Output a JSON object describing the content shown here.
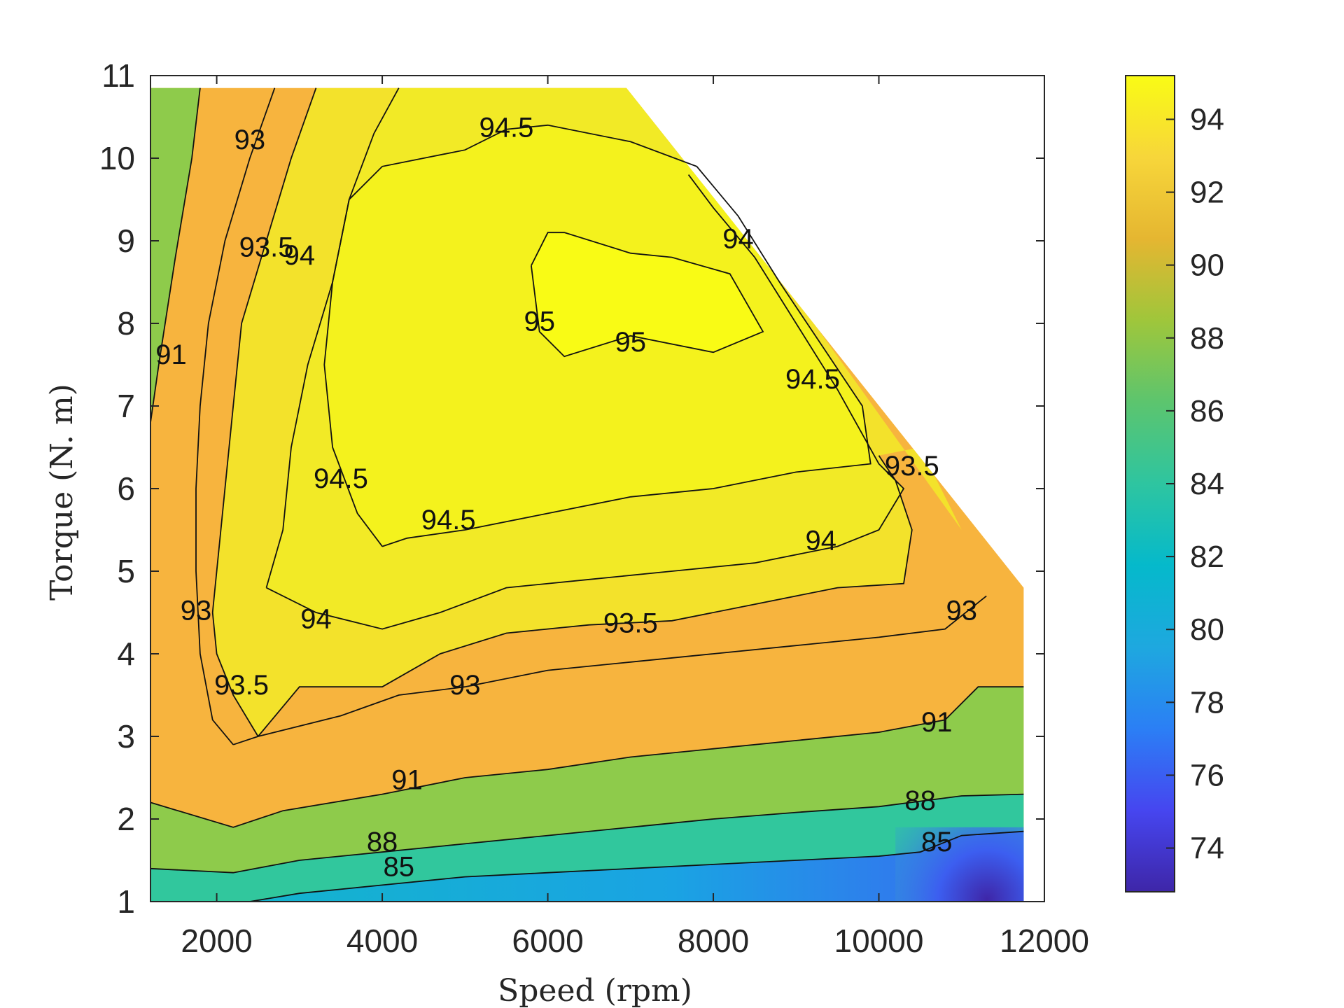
{
  "chart_data": {
    "type": "contourf",
    "xlabel": "Speed (rpm)",
    "ylabel": "Torque (N. m)",
    "xlim": [
      1200,
      12000
    ],
    "ylim": [
      1,
      11
    ],
    "x_ticks": [
      2000,
      4000,
      6000,
      8000,
      10000,
      12000
    ],
    "x_tick_labels": [
      "2000",
      "4000",
      "6000",
      "8000",
      "10000",
      "12000"
    ],
    "y_ticks": [
      1,
      2,
      3,
      4,
      5,
      6,
      7,
      8,
      9,
      10,
      11
    ],
    "y_tick_labels": [
      "1",
      "2",
      "3",
      "4",
      "5",
      "6",
      "7",
      "8",
      "9",
      "10",
      "11"
    ],
    "colorbar": {
      "range": [
        72.8,
        95.2
      ],
      "ticks": [
        74,
        76,
        78,
        80,
        82,
        84,
        86,
        88,
        90,
        92,
        94
      ],
      "tick_labels": [
        "74",
        "76",
        "78",
        "80",
        "82",
        "84",
        "86",
        "88",
        "90",
        "92",
        "94"
      ],
      "colormap": "parula"
    },
    "domain_boundary": [
      [
        1200,
        10.85
      ],
      [
        6950,
        10.85
      ],
      [
        11750,
        4.8
      ],
      [
        11750,
        1
      ],
      [
        1200,
        1
      ]
    ],
    "contours": [
      {
        "level": 85,
        "label": "85",
        "points": [
          [
            2400,
            1.0
          ],
          [
            3000,
            1.1
          ],
          [
            4000,
            1.2
          ],
          [
            5000,
            1.3
          ],
          [
            6000,
            1.35
          ],
          [
            7000,
            1.4
          ],
          [
            8000,
            1.45
          ],
          [
            9000,
            1.5
          ],
          [
            10000,
            1.55
          ],
          [
            10500,
            1.6
          ],
          [
            11000,
            1.8
          ],
          [
            11750,
            1.85
          ]
        ]
      },
      {
        "level": 88,
        "label": "88",
        "points": [
          [
            1200,
            1.4
          ],
          [
            2200,
            1.35
          ],
          [
            3000,
            1.5
          ],
          [
            4000,
            1.6
          ],
          [
            5000,
            1.7
          ],
          [
            6000,
            1.8
          ],
          [
            7000,
            1.9
          ],
          [
            8000,
            2.0
          ],
          [
            9000,
            2.08
          ],
          [
            10000,
            2.15
          ],
          [
            11000,
            2.28
          ],
          [
            11750,
            2.3
          ]
        ]
      },
      {
        "level": 91,
        "label": "91",
        "points": [
          [
            1200,
            2.2
          ],
          [
            2200,
            1.9
          ],
          [
            2800,
            2.1
          ],
          [
            4000,
            2.3
          ],
          [
            5000,
            2.5
          ],
          [
            6000,
            2.6
          ],
          [
            7000,
            2.75
          ],
          [
            8000,
            2.85
          ],
          [
            9000,
            2.95
          ],
          [
            10000,
            3.05
          ],
          [
            10800,
            3.2
          ],
          [
            11200,
            3.6
          ],
          [
            11750,
            3.6
          ]
        ]
      },
      {
        "level": 91,
        "label": "91",
        "points": [
          [
            1200,
            6.8
          ],
          [
            1300,
            7.5
          ],
          [
            1500,
            8.8
          ],
          [
            1700,
            10.0
          ],
          [
            1800,
            10.85
          ]
        ]
      },
      {
        "level": 93,
        "label": "93",
        "points": [
          [
            2200,
            2.9
          ],
          [
            2500,
            3.0
          ],
          [
            3500,
            3.25
          ],
          [
            4200,
            3.5
          ],
          [
            5000,
            3.6
          ],
          [
            6000,
            3.8
          ],
          [
            7000,
            3.9
          ],
          [
            8000,
            4.0
          ],
          [
            9000,
            4.1
          ],
          [
            10000,
            4.2
          ],
          [
            10800,
            4.3
          ],
          [
            11300,
            4.7
          ]
        ]
      },
      {
        "level": 93,
        "label": "93",
        "points": [
          [
            2200,
            2.9
          ],
          [
            1950,
            3.2
          ],
          [
            1800,
            4.0
          ],
          [
            1750,
            5.0
          ],
          [
            1750,
            6.0
          ],
          [
            1800,
            7.0
          ],
          [
            1900,
            8.0
          ],
          [
            2100,
            9.0
          ],
          [
            2400,
            10.0
          ],
          [
            2700,
            10.85
          ]
        ]
      },
      {
        "level": 93.5,
        "label": "93.5",
        "points": [
          [
            2500,
            3.0
          ],
          [
            2200,
            3.5
          ],
          [
            2000,
            4.0
          ],
          [
            1950,
            4.5
          ],
          [
            2000,
            5.0
          ],
          [
            2100,
            6.0
          ],
          [
            2200,
            7.0
          ],
          [
            2300,
            8.0
          ],
          [
            2600,
            9.0
          ],
          [
            2900,
            10.0
          ],
          [
            3200,
            10.85
          ]
        ]
      },
      {
        "level": 93.5,
        "label": "93.5",
        "points": [
          [
            2500,
            3.0
          ],
          [
            3000,
            3.6
          ],
          [
            4000,
            3.6
          ],
          [
            4700,
            4.0
          ],
          [
            5500,
            4.25
          ],
          [
            6500,
            4.35
          ],
          [
            7500,
            4.4
          ],
          [
            8500,
            4.6
          ],
          [
            9500,
            4.8
          ],
          [
            10300,
            4.85
          ],
          [
            10400,
            5.5
          ],
          [
            10200,
            6.1
          ],
          [
            10000,
            6.4
          ]
        ]
      },
      {
        "level": 94,
        "label": "94",
        "points": [
          [
            2600,
            4.8
          ],
          [
            2800,
            5.5
          ],
          [
            2900,
            6.5
          ],
          [
            3100,
            7.5
          ],
          [
            3400,
            8.5
          ],
          [
            3600,
            9.5
          ],
          [
            3900,
            10.3
          ],
          [
            4200,
            10.85
          ]
        ]
      },
      {
        "level": 94,
        "label": "94",
        "points": [
          [
            2600,
            4.8
          ],
          [
            3200,
            4.5
          ],
          [
            4000,
            4.3
          ],
          [
            4700,
            4.5
          ],
          [
            5500,
            4.8
          ],
          [
            6500,
            4.9
          ],
          [
            7500,
            5.0
          ],
          [
            8500,
            5.1
          ],
          [
            9500,
            5.3
          ],
          [
            10000,
            5.5
          ],
          [
            10300,
            6.0
          ],
          [
            10000,
            6.3
          ],
          [
            9500,
            7.2
          ],
          [
            9000,
            8.0
          ],
          [
            8500,
            8.8
          ],
          [
            8000,
            9.4
          ],
          [
            7700,
            9.8
          ]
        ]
      },
      {
        "level": 94.5,
        "label": "94.5",
        "points": [
          [
            4000,
            5.3
          ],
          [
            3700,
            5.7
          ],
          [
            3400,
            6.5
          ],
          [
            3300,
            7.5
          ],
          [
            3400,
            8.5
          ],
          [
            3600,
            9.5
          ],
          [
            4000,
            9.9
          ],
          [
            5000,
            10.1
          ],
          [
            5500,
            10.35
          ],
          [
            6000,
            10.4
          ],
          [
            7000,
            10.2
          ],
          [
            7800,
            9.9
          ],
          [
            8300,
            9.3
          ],
          [
            8800,
            8.5
          ],
          [
            9200,
            7.9
          ],
          [
            9800,
            7.0
          ],
          [
            9900,
            6.3
          ],
          [
            9000,
            6.2
          ],
          [
            8000,
            6.0
          ],
          [
            7000,
            5.9
          ],
          [
            6000,
            5.7
          ],
          [
            5000,
            5.5
          ],
          [
            4300,
            5.4
          ],
          [
            4000,
            5.3
          ]
        ]
      },
      {
        "level": 95,
        "label": "95",
        "points": [
          [
            5800,
            8.7
          ],
          [
            6000,
            9.1
          ],
          [
            6200,
            9.1
          ],
          [
            7000,
            8.85
          ],
          [
            7500,
            8.8
          ],
          [
            8200,
            8.6
          ],
          [
            8600,
            7.9
          ],
          [
            8000,
            7.65
          ],
          [
            7000,
            7.85
          ],
          [
            6200,
            7.6
          ],
          [
            5900,
            7.9
          ],
          [
            5800,
            8.7
          ]
        ]
      }
    ],
    "contour_labels": [
      {
        "text": "85",
        "x": 4200,
        "y": 1.4
      },
      {
        "text": "85",
        "x": 10700,
        "y": 1.7
      },
      {
        "text": "88",
        "x": 4000,
        "y": 1.7
      },
      {
        "text": "88",
        "x": 10500,
        "y": 2.2
      },
      {
        "text": "91",
        "x": 4300,
        "y": 2.45
      },
      {
        "text": "91",
        "x": 10700,
        "y": 3.15
      },
      {
        "text": "91",
        "x": 1450,
        "y": 7.6
      },
      {
        "text": "93",
        "x": 5000,
        "y": 3.6
      },
      {
        "text": "93",
        "x": 11000,
        "y": 4.5
      },
      {
        "text": "93",
        "x": 1750,
        "y": 4.5
      },
      {
        "text": "93",
        "x": 2400,
        "y": 10.2
      },
      {
        "text": "93.5",
        "x": 2300,
        "y": 3.6
      },
      {
        "text": "93.5",
        "x": 7000,
        "y": 4.35
      },
      {
        "text": "93.5",
        "x": 2600,
        "y": 8.9
      },
      {
        "text": "93.5",
        "x": 10400,
        "y": 6.25
      },
      {
        "text": "94",
        "x": 3200,
        "y": 4.4
      },
      {
        "text": "94",
        "x": 9300,
        "y": 5.35
      },
      {
        "text": "94",
        "x": 3000,
        "y": 8.8
      },
      {
        "text": "94",
        "x": 8300,
        "y": 9.0
      },
      {
        "text": "94.5",
        "x": 3500,
        "y": 6.1
      },
      {
        "text": "94.5",
        "x": 4800,
        "y": 5.6
      },
      {
        "text": "94.5",
        "x": 5500,
        "y": 10.35
      },
      {
        "text": "94.5",
        "x": 9200,
        "y": 7.3
      },
      {
        "text": "95",
        "x": 5900,
        "y": 8.0
      },
      {
        "text": "95",
        "x": 7000,
        "y": 7.75
      }
    ]
  }
}
